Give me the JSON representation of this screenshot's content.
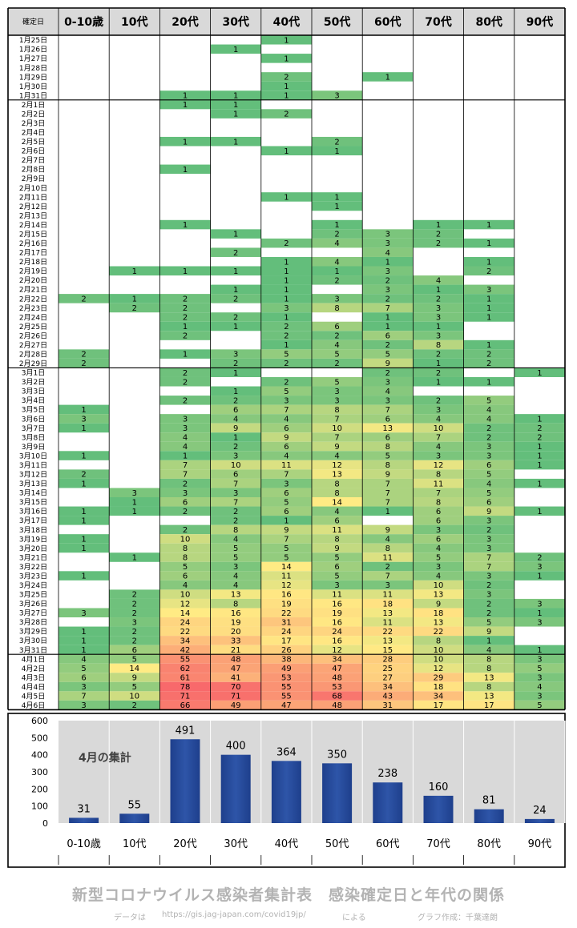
{
  "header": {
    "date_col": "確定日",
    "ages": [
      "0-10歳",
      "10代",
      "20代",
      "30代",
      "40代",
      "50代",
      "60代",
      "70代",
      "80代",
      "90代"
    ]
  },
  "colors": {
    "low": "#63be7b",
    "mid": "#ffeb84",
    "high": "#f8696b",
    "bar": "#2e55a8",
    "header_bg": "#d9d9d9"
  },
  "chart_data": [
    {
      "type": "heatmap",
      "title": "",
      "xlabel": "",
      "ylabel": "",
      "x": [
        "0-10歳",
        "10代",
        "20代",
        "30代",
        "40代",
        "50代",
        "60代",
        "70代",
        "80代",
        "90代"
      ],
      "rows": [
        [
          "1月25日",
          [
            null,
            null,
            null,
            null,
            1,
            null,
            null,
            null,
            null,
            null
          ]
        ],
        [
          "1月26日",
          [
            null,
            null,
            null,
            1,
            null,
            null,
            null,
            null,
            null,
            null
          ]
        ],
        [
          "1月27日",
          [
            null,
            null,
            null,
            null,
            1,
            null,
            null,
            null,
            null,
            null
          ]
        ],
        [
          "1月28日",
          [
            null,
            null,
            null,
            null,
            null,
            null,
            null,
            null,
            null,
            null
          ]
        ],
        [
          "1月29日",
          [
            null,
            null,
            null,
            null,
            2,
            null,
            1,
            null,
            null,
            null
          ]
        ],
        [
          "1月30日",
          [
            null,
            null,
            null,
            null,
            1,
            null,
            null,
            null,
            null,
            null
          ]
        ],
        [
          "1月31日",
          [
            null,
            null,
            1,
            1,
            1,
            3,
            null,
            null,
            null,
            null
          ]
        ],
        [
          "2月1日",
          [
            null,
            null,
            1,
            1,
            null,
            null,
            null,
            null,
            null,
            null
          ]
        ],
        [
          "2月2日",
          [
            null,
            null,
            null,
            1,
            2,
            null,
            null,
            null,
            null,
            null
          ]
        ],
        [
          "2月3日",
          [
            null,
            null,
            null,
            null,
            null,
            null,
            null,
            null,
            null,
            null
          ]
        ],
        [
          "2月4日",
          [
            null,
            null,
            null,
            null,
            null,
            null,
            null,
            null,
            null,
            null
          ]
        ],
        [
          "2月5日",
          [
            null,
            null,
            1,
            1,
            null,
            2,
            null,
            null,
            null,
            null
          ]
        ],
        [
          "2月6日",
          [
            null,
            null,
            null,
            null,
            1,
            1,
            null,
            null,
            null,
            null
          ]
        ],
        [
          "2月7日",
          [
            null,
            null,
            null,
            null,
            null,
            null,
            null,
            null,
            null,
            null
          ]
        ],
        [
          "2月8日",
          [
            null,
            null,
            1,
            null,
            null,
            null,
            null,
            null,
            null,
            null
          ]
        ],
        [
          "2月9日",
          [
            null,
            null,
            null,
            null,
            null,
            null,
            null,
            null,
            null,
            null
          ]
        ],
        [
          "2月10日",
          [
            null,
            null,
            null,
            null,
            null,
            null,
            null,
            null,
            null,
            null
          ]
        ],
        [
          "2月11日",
          [
            null,
            null,
            null,
            null,
            1,
            1,
            null,
            null,
            null,
            null
          ]
        ],
        [
          "2月12日",
          [
            null,
            null,
            null,
            null,
            null,
            1,
            null,
            null,
            null,
            null
          ]
        ],
        [
          "2月13日",
          [
            null,
            null,
            null,
            null,
            null,
            null,
            null,
            null,
            null,
            null
          ]
        ],
        [
          "2月14日",
          [
            null,
            null,
            1,
            null,
            null,
            1,
            null,
            1,
            1,
            null
          ]
        ],
        [
          "2月15日",
          [
            null,
            null,
            null,
            1,
            null,
            2,
            3,
            2,
            null,
            null
          ]
        ],
        [
          "2月16日",
          [
            null,
            null,
            null,
            null,
            2,
            4,
            3,
            2,
            1,
            null
          ]
        ],
        [
          "2月17日",
          [
            null,
            null,
            null,
            2,
            null,
            null,
            4,
            null,
            null,
            null
          ]
        ],
        [
          "2月18日",
          [
            null,
            null,
            null,
            null,
            1,
            4,
            1,
            null,
            1,
            null
          ]
        ],
        [
          "2月19日",
          [
            null,
            1,
            1,
            1,
            1,
            1,
            3,
            null,
            2,
            null
          ]
        ],
        [
          "2月20日",
          [
            null,
            null,
            null,
            null,
            1,
            2,
            2,
            4,
            null,
            null
          ]
        ],
        [
          "2月21日",
          [
            null,
            null,
            null,
            1,
            1,
            null,
            3,
            1,
            3,
            null
          ]
        ],
        [
          "2月22日",
          [
            2,
            1,
            2,
            2,
            1,
            3,
            2,
            2,
            1,
            null
          ]
        ],
        [
          "2月23日",
          [
            null,
            2,
            2,
            null,
            3,
            8,
            7,
            3,
            1,
            null
          ]
        ],
        [
          "2月24日",
          [
            null,
            null,
            2,
            2,
            1,
            null,
            1,
            3,
            1,
            null
          ]
        ],
        [
          "2月25日",
          [
            null,
            null,
            1,
            1,
            2,
            6,
            1,
            1,
            null,
            null
          ]
        ],
        [
          "2月26日",
          [
            null,
            null,
            2,
            null,
            2,
            2,
            6,
            3,
            null,
            null
          ]
        ],
        [
          "2月27日",
          [
            null,
            null,
            null,
            null,
            1,
            4,
            2,
            8,
            1,
            null
          ]
        ],
        [
          "2月28日",
          [
            2,
            null,
            1,
            3,
            5,
            5,
            5,
            2,
            2,
            null
          ]
        ],
        [
          "2月29日",
          [
            2,
            null,
            null,
            2,
            2,
            2,
            9,
            1,
            2,
            null
          ]
        ],
        [
          "3月1日",
          [
            null,
            null,
            2,
            1,
            null,
            null,
            2,
            2,
            null,
            1
          ]
        ],
        [
          "3月2日",
          [
            null,
            null,
            2,
            null,
            2,
            5,
            3,
            1,
            1,
            null
          ]
        ],
        [
          "3月3日",
          [
            null,
            null,
            null,
            1,
            5,
            3,
            4,
            null,
            null,
            null
          ]
        ],
        [
          "3月4日",
          [
            null,
            null,
            2,
            2,
            3,
            3,
            3,
            2,
            5,
            null
          ]
        ],
        [
          "3月5日",
          [
            1,
            null,
            null,
            6,
            7,
            8,
            7,
            3,
            4,
            null
          ]
        ],
        [
          "3月6日",
          [
            3,
            null,
            3,
            4,
            4,
            7,
            6,
            4,
            4,
            1
          ]
        ],
        [
          "3月7日",
          [
            1,
            null,
            3,
            9,
            6,
            10,
            13,
            10,
            2,
            2
          ]
        ],
        [
          "3月8日",
          [
            null,
            null,
            4,
            1,
            9,
            7,
            6,
            7,
            2,
            2
          ]
        ],
        [
          "3月9日",
          [
            null,
            null,
            4,
            2,
            6,
            9,
            8,
            4,
            3,
            1
          ]
        ],
        [
          "3月10日",
          [
            1,
            null,
            1,
            3,
            4,
            4,
            5,
            3,
            3,
            1
          ]
        ],
        [
          "3月11日",
          [
            null,
            null,
            7,
            10,
            11,
            12,
            8,
            12,
            6,
            1
          ]
        ],
        [
          "3月12日",
          [
            2,
            null,
            7,
            6,
            7,
            13,
            9,
            8,
            5,
            null
          ]
        ],
        [
          "3月13日",
          [
            1,
            null,
            2,
            7,
            3,
            8,
            7,
            11,
            4,
            1
          ]
        ],
        [
          "3月14日",
          [
            null,
            3,
            3,
            3,
            6,
            8,
            7,
            7,
            5,
            null
          ]
        ],
        [
          "3月15日",
          [
            null,
            1,
            6,
            7,
            5,
            14,
            7,
            8,
            6,
            null
          ]
        ],
        [
          "3月16日",
          [
            1,
            1,
            2,
            2,
            6,
            4,
            1,
            6,
            9,
            1
          ]
        ],
        [
          "3月17日",
          [
            1,
            null,
            null,
            2,
            1,
            6,
            null,
            6,
            3,
            null
          ]
        ],
        [
          "3月18日",
          [
            null,
            null,
            2,
            8,
            9,
            11,
            9,
            3,
            2,
            null
          ]
        ],
        [
          "3月19日",
          [
            1,
            null,
            10,
            4,
            7,
            8,
            4,
            6,
            3,
            null
          ]
        ],
        [
          "3月20日",
          [
            1,
            null,
            8,
            5,
            5,
            9,
            8,
            4,
            3,
            null
          ]
        ],
        [
          "3月21日",
          [
            null,
            1,
            8,
            5,
            5,
            5,
            11,
            5,
            7,
            2
          ]
        ],
        [
          "3月22日",
          [
            null,
            null,
            5,
            3,
            14,
            6,
            2,
            3,
            7,
            3
          ]
        ],
        [
          "3月23日",
          [
            1,
            null,
            6,
            4,
            11,
            5,
            7,
            4,
            3,
            1
          ]
        ],
        [
          "3月24日",
          [
            null,
            null,
            4,
            4,
            12,
            3,
            3,
            10,
            2,
            null
          ]
        ],
        [
          "3月25日",
          [
            null,
            2,
            10,
            13,
            16,
            11,
            11,
            13,
            3,
            null
          ]
        ],
        [
          "3月26日",
          [
            null,
            2,
            12,
            8,
            19,
            16,
            18,
            9,
            2,
            3
          ]
        ],
        [
          "3月27日",
          [
            3,
            2,
            14,
            16,
            22,
            19,
            13,
            18,
            2,
            1
          ]
        ],
        [
          "3月28日",
          [
            null,
            3,
            24,
            19,
            31,
            16,
            11,
            13,
            5,
            3
          ]
        ],
        [
          "3月29日",
          [
            1,
            2,
            22,
            20,
            24,
            24,
            22,
            22,
            9,
            null
          ]
        ],
        [
          "3月30日",
          [
            1,
            2,
            34,
            33,
            17,
            16,
            13,
            8,
            1,
            null
          ]
        ],
        [
          "3月31日",
          [
            1,
            6,
            42,
            21,
            26,
            12,
            15,
            10,
            4,
            1
          ]
        ],
        [
          "4月1日",
          [
            4,
            5,
            55,
            48,
            38,
            34,
            28,
            10,
            8,
            3
          ]
        ],
        [
          "4月2日",
          [
            5,
            14,
            62,
            47,
            49,
            47,
            25,
            12,
            8,
            5
          ]
        ],
        [
          "4月3日",
          [
            6,
            9,
            61,
            41,
            53,
            48,
            27,
            29,
            13,
            3
          ]
        ],
        [
          "4月4日",
          [
            3,
            5,
            78,
            70,
            55,
            53,
            34,
            18,
            8,
            4
          ]
        ],
        [
          "4月5日",
          [
            7,
            10,
            71,
            71,
            55,
            68,
            43,
            34,
            13,
            3
          ]
        ],
        [
          "4月6日",
          [
            3,
            2,
            66,
            49,
            47,
            48,
            31,
            17,
            17,
            5
          ]
        ]
      ]
    },
    {
      "type": "bar",
      "title": "4月の集計",
      "xlabel": "",
      "ylabel": "",
      "categories": [
        "0-10歳",
        "10代",
        "20代",
        "30代",
        "40代",
        "50代",
        "60代",
        "70代",
        "80代",
        "90代"
      ],
      "values": [
        31,
        55,
        491,
        400,
        364,
        350,
        238,
        160,
        81,
        24
      ],
      "ylim": [
        0,
        600
      ],
      "yticks": [
        0,
        100,
        200,
        300,
        400,
        500,
        600
      ],
      "grid": false,
      "legend": "none"
    }
  ],
  "footer": {
    "title": "新型コロナウイルス感染者集計表　感染確定日と年代の関係",
    "data_label": "データは",
    "url": "https://gis.jag-japan.com/covid19jp/",
    "suffix": "による",
    "credit": "グラフ作成：千葉達朗"
  }
}
